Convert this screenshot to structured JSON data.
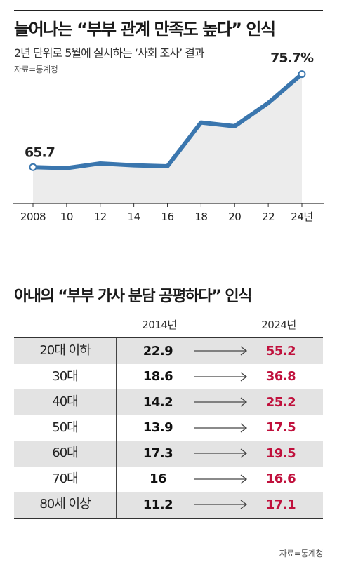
{
  "header": {
    "title": "늘어나는 “부부 관계 만족도 높다” 인식",
    "subtitle": "2년 단위로 5월에 실시하는 ‘사회 조사’ 결과",
    "source": "자료=통계청"
  },
  "chart_data": [
    {
      "type": "area",
      "title": "늘어나는 “부부 관계 만족도 높다” 인식",
      "subtitle": "2년 단위로 5월에 실시하는 ‘사회 조사’ 결과",
      "x": [
        2008,
        2010,
        2012,
        2014,
        2016,
        2018,
        2020,
        2022,
        2024
      ],
      "x_tick_labels": [
        "2008",
        "10",
        "12",
        "14",
        "16",
        "18",
        "20",
        "22",
        "24년"
      ],
      "values": [
        65.7,
        65.6,
        66.1,
        65.9,
        65.8,
        70.5,
        70.1,
        72.6,
        75.7
      ],
      "data_labels": [
        {
          "x": 2008,
          "text": "65.7"
        },
        {
          "x": 2024,
          "text": "75.7%"
        }
      ],
      "ylim": [
        61.8,
        76.5
      ],
      "grid": false,
      "line_color": "#3a76ae",
      "fill_color": "#ececec",
      "xlabel": "",
      "ylabel": ""
    },
    {
      "type": "table",
      "title": "아내의 “부부 가사 분담 공평하다” 인식",
      "columns": [
        "",
        "2014년",
        "2024년"
      ],
      "rows": [
        {
          "category": "20대 이하",
          "v2014": "22.9",
          "v2024": "55.2"
        },
        {
          "category": "30대",
          "v2014": "18.6",
          "v2024": "36.8"
        },
        {
          "category": "40대",
          "v2014": "14.2",
          "v2024": "25.2"
        },
        {
          "category": "50대",
          "v2014": "13.9",
          "v2024": "17.5"
        },
        {
          "category": "60대",
          "v2014": "17.3",
          "v2024": "19.5"
        },
        {
          "category": "70대",
          "v2014": "16",
          "v2024": "16.6"
        },
        {
          "category": "80세 이상",
          "v2014": "11.2",
          "v2024": "17.1"
        }
      ],
      "source": "자료=통계청",
      "highlight_color": "#c0103c",
      "shade_color": "#e3e3e3"
    }
  ]
}
